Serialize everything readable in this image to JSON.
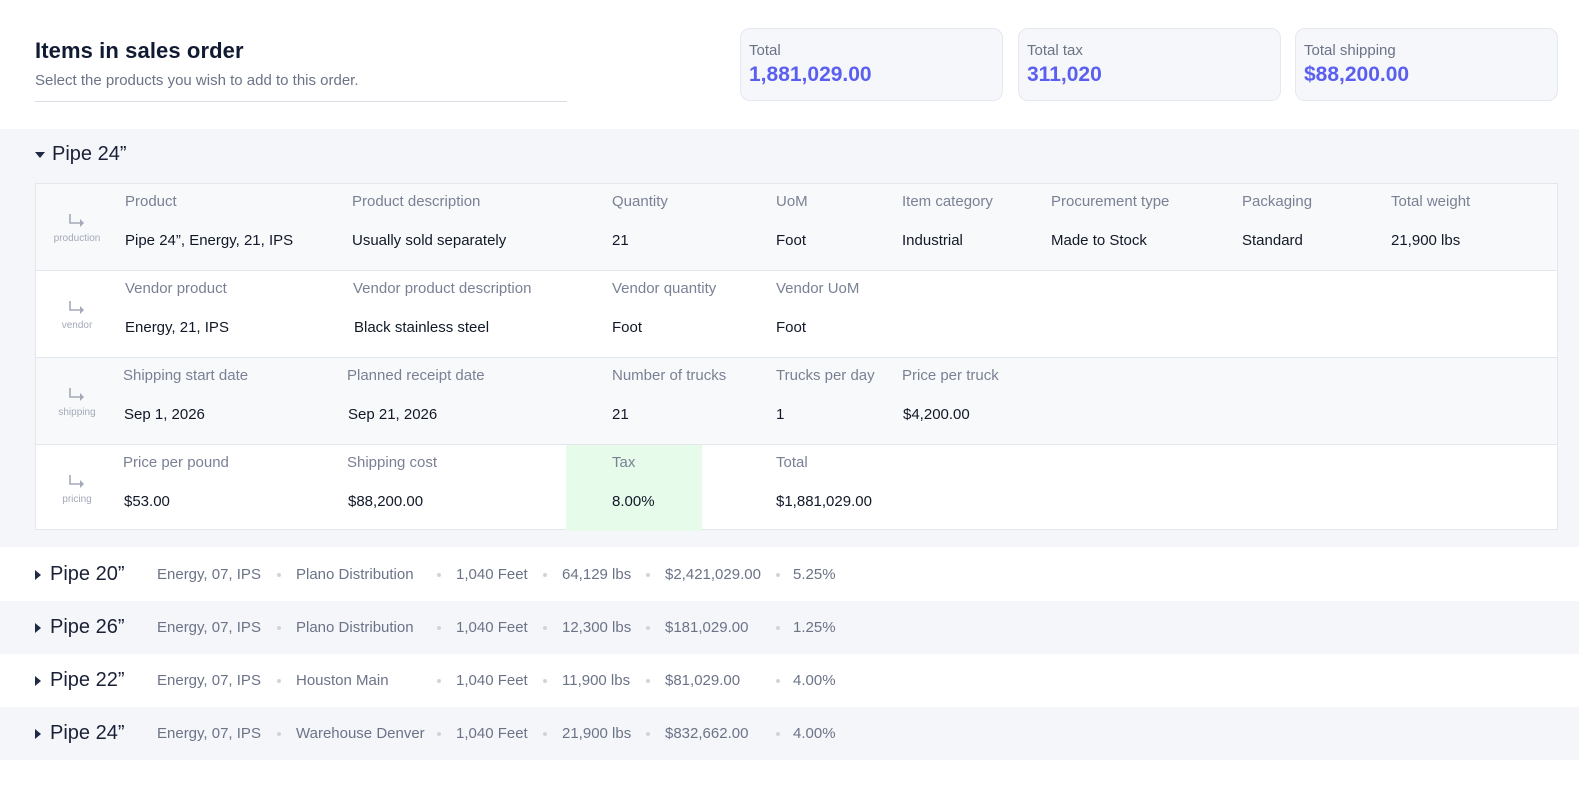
{
  "header": {
    "title": "Items in sales order",
    "subtitle": "Select the products you wish to add to this order."
  },
  "summary": {
    "total_label": "Total",
    "total_value": "1,881,029.00",
    "tax_label": "Total tax",
    "tax_value": "311,020",
    "shipping_label": "Total shipping",
    "shipping_value": "$88,200.00"
  },
  "colors": {
    "accent": "#5b5fef",
    "tax_highlight": "#e6fbe9"
  },
  "expanded_group": {
    "title": "Pipe 24”",
    "production": {
      "tag": "production",
      "labels": [
        "Product",
        "Product description",
        "Quantity",
        "UoM",
        "Item category",
        "Procurement type",
        "Packaging",
        "Total weight"
      ],
      "values": [
        "Pipe 24”, Energy, 21, IPS",
        "Usually sold separately",
        "21",
        "Foot",
        "Industrial",
        "Made to Stock",
        "Standard",
        "21,900 lbs"
      ]
    },
    "vendor": {
      "tag": "vendor",
      "labels": [
        "Vendor product",
        "Vendor product description",
        "Vendor quantity",
        "Vendor UoM"
      ],
      "values": [
        "Energy, 21, IPS",
        "Black stainless steel",
        "Foot",
        "Foot"
      ]
    },
    "shipping": {
      "tag": "shipping",
      "labels": [
        "Shipping start date",
        "Planned receipt date",
        "Number of trucks",
        "Trucks per day",
        "Price per truck"
      ],
      "values": [
        "Sep 1, 2026",
        "Sep 21, 2026",
        "21",
        "1",
        "$4,200.00"
      ]
    },
    "pricing": {
      "tag": "pricing",
      "labels": [
        "Price per pound",
        "Shipping cost",
        "Tax",
        "Total"
      ],
      "values": [
        "$53.00",
        "$88,200.00",
        "8.00%",
        "$1,881,029.00"
      ]
    }
  },
  "collapsed_groups": [
    {
      "title": "Pipe 20”",
      "product": "Energy, 07, IPS",
      "location": "Plano Distribution",
      "quantity": "1,040 Feet",
      "weight": "64,129 lbs",
      "total": "$2,421,029.00",
      "tax": "5.25%"
    },
    {
      "title": "Pipe 26”",
      "product": "Energy, 07, IPS",
      "location": "Plano Distribution",
      "quantity": "1,040 Feet",
      "weight": "12,300 lbs",
      "total": "$181,029.00",
      "tax": "1.25%"
    },
    {
      "title": "Pipe 22”",
      "product": "Energy, 07, IPS",
      "location": "Houston Main",
      "quantity": "1,040 Feet",
      "weight": "11,900 lbs",
      "total": "$81,029.00",
      "tax": "4.00%"
    },
    {
      "title": "Pipe 24”",
      "product": "Energy, 07, IPS",
      "location": "Warehouse Denver",
      "quantity": "1,040 Feet",
      "weight": "21,900 lbs",
      "total": "$832,662.00",
      "tax": "4.00%"
    }
  ]
}
